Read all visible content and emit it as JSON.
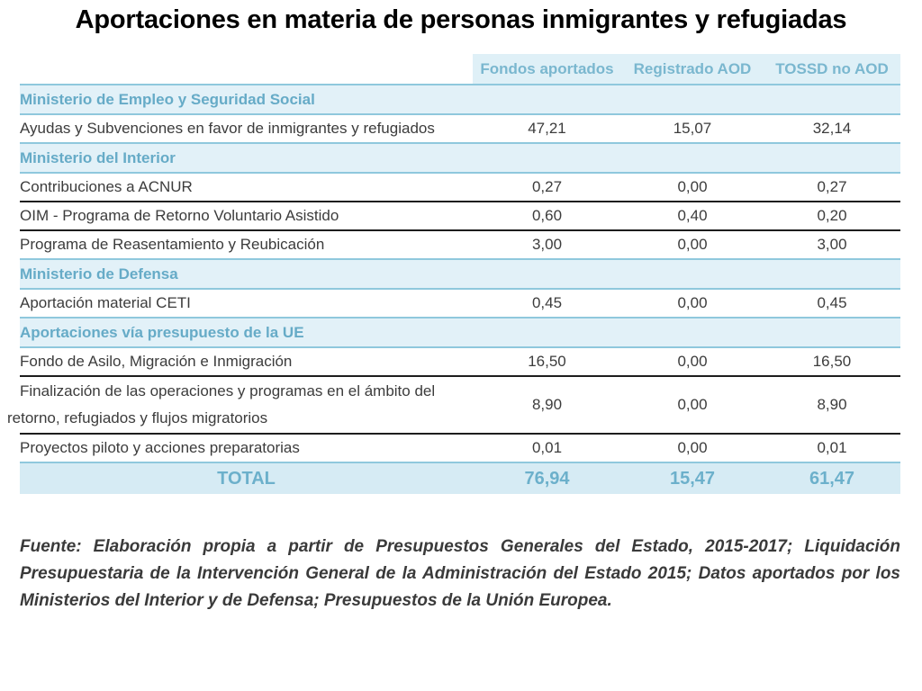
{
  "title": "Aportaciones en materia de personas inmigrantes y refugiadas",
  "columns": [
    "Fondos aportados",
    "Registrado AOD",
    "TOSSD no AOD"
  ],
  "sections": [
    {
      "name": "Ministerio de Empleo y Seguridad Social",
      "items": [
        {
          "label": "Ayudas y Subvenciones en favor de inmigrantes y refugiados",
          "values": [
            "47,21",
            "15,07",
            "32,14"
          ]
        }
      ]
    },
    {
      "name": "Ministerio del Interior",
      "items": [
        {
          "label": "Contribuciones a ACNUR",
          "values": [
            "0,27",
            "0,00",
            "0,27"
          ]
        },
        {
          "label": "OIM - Programa de Retorno Voluntario Asistido",
          "values": [
            "0,60",
            "0,40",
            "0,20"
          ]
        },
        {
          "label": "Programa de Reasentamiento y Reubicación",
          "values": [
            "3,00",
            "0,00",
            "3,00"
          ]
        }
      ]
    },
    {
      "name": "Ministerio de Defensa",
      "items": [
        {
          "label": "Aportación material CETI",
          "values": [
            "0,45",
            "0,00",
            "0,45"
          ]
        }
      ]
    },
    {
      "name": "Aportaciones vía presupuesto de la UE",
      "items": [
        {
          "label": "Fondo de Asilo, Migración e Inmigración",
          "values": [
            "16,50",
            "0,00",
            "16,50"
          ]
        },
        {
          "label_line1": "Finalización de las operaciones y programas en el ámbito del",
          "label_line2": "retorno, refugiados y flujos migratorios",
          "values": [
            "8,90",
            "0,00",
            "8,90"
          ]
        },
        {
          "label": "Proyectos piloto y acciones preparatorias",
          "values": [
            "0,01",
            "0,00",
            "0,01"
          ]
        }
      ]
    }
  ],
  "total": {
    "label": "TOTAL",
    "values": [
      "76,94",
      "15,47",
      "61,47"
    ]
  },
  "source": "Fuente: Elaboración propia a partir de Presupuestos Generales del Estado, 2015-2017; Liquidación Presupuestaria de la Intervención General de la Administración del Estado 2015; Datos aportados por los Ministerios del Interior y de Defensa; Presupuestos de la Unión Europea.",
  "colors": {
    "accent": "#7ab7cf",
    "section_bg": "#e2f1f8",
    "total_bg": "#d6ebf4"
  }
}
